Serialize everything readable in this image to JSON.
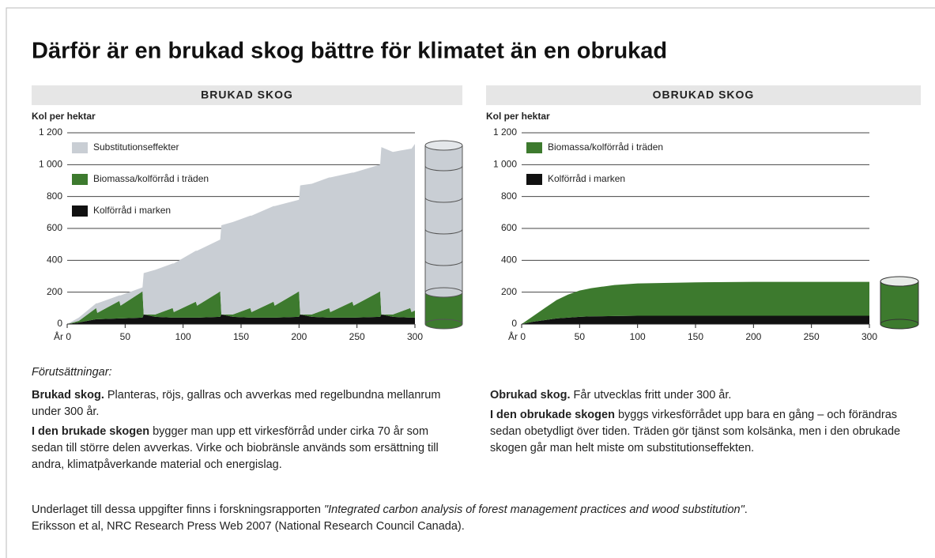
{
  "title": "Därför är en brukad skog bättre för klimatet än en obrukad",
  "chart_data": [
    {
      "type": "area",
      "title": "BRUKAD SKOG",
      "y_label": "Kol per hektar",
      "x": [
        0,
        10,
        25,
        26,
        45,
        46,
        65,
        66,
        76,
        91,
        92,
        111,
        112,
        132,
        133,
        143,
        158,
        159,
        178,
        179,
        200,
        201,
        211,
        226,
        227,
        246,
        247,
        270,
        271,
        281,
        296,
        297,
        300
      ],
      "series": [
        {
          "name": "Kolförråd i marken",
          "color": "#111111",
          "values": [
            0,
            10,
            30,
            30,
            35,
            35,
            40,
            60,
            45,
            40,
            40,
            40,
            40,
            45,
            60,
            45,
            40,
            40,
            40,
            40,
            45,
            60,
            45,
            40,
            40,
            40,
            40,
            45,
            60,
            45,
            40,
            40,
            40
          ]
        },
        {
          "name": "Biomassa/kolförråd i träden",
          "color": "#3d7a2e",
          "values": [
            0,
            10,
            70,
            40,
            110,
            80,
            165,
            0,
            15,
            60,
            35,
            100,
            75,
            160,
            0,
            15,
            60,
            35,
            100,
            75,
            160,
            0,
            15,
            60,
            35,
            100,
            75,
            160,
            0,
            15,
            60,
            35,
            45
          ]
        },
        {
          "name": "Substitutionseffekter",
          "color": "#c9ced4",
          "values": [
            0,
            20,
            30,
            60,
            35,
            65,
            25,
            260,
            280,
            280,
            305,
            320,
            345,
            325,
            560,
            580,
            580,
            605,
            600,
            625,
            575,
            810,
            820,
            820,
            845,
            810,
            835,
            795,
            1050,
            1020,
            1000,
            1025,
            1045
          ]
        }
      ],
      "xlim": [
        0,
        300
      ],
      "xticks": [
        {
          "value": 0,
          "label": "År 0"
        },
        50,
        100,
        150,
        200,
        250,
        300
      ],
      "ylim": [
        0,
        1200
      ],
      "yticks": [
        0,
        200,
        400,
        600,
        800,
        {
          "value": 1000,
          "label": "1 000"
        },
        {
          "value": 1200,
          "label": "1 200"
        }
      ]
    },
    {
      "type": "area",
      "title": "OBRUKAD SKOG",
      "y_label": "Kol per hektar",
      "x": [
        0,
        10,
        20,
        30,
        40,
        50,
        60,
        80,
        100,
        150,
        200,
        250,
        300
      ],
      "series": [
        {
          "name": "Kolförråd i marken",
          "color": "#111111",
          "values": [
            0,
            15,
            25,
            35,
            40,
            45,
            48,
            50,
            52,
            52,
            52,
            52,
            52
          ]
        },
        {
          "name": "Biomassa/kolförråd i träden",
          "color": "#3d7a2e",
          "values": [
            0,
            35,
            75,
            115,
            145,
            165,
            177,
            195,
            203,
            210,
            213,
            213,
            213
          ]
        }
      ],
      "xlim": [
        0,
        300
      ],
      "xticks": [
        {
          "value": 0,
          "label": "År 0"
        },
        50,
        100,
        150,
        200,
        250,
        300
      ],
      "ylim": [
        0,
        1200
      ],
      "yticks": [
        0,
        200,
        400,
        600,
        800,
        {
          "value": 1000,
          "label": "1 000"
        },
        {
          "value": 1200,
          "label": "1 200"
        }
      ]
    }
  ],
  "conditions_label": "Förutsättningar:",
  "left_text": [
    {
      "lead": "Brukad skog.",
      "body": " Planteras, röjs, gallras och avverkas med regelbundna mellanrum under 300 år."
    },
    {
      "lead": "I den brukade skogen",
      "body": " bygger man upp ett virkesförråd under cirka 70 år som sedan till större delen avverkas. Virke och biobränsle används som ersättning till andra, klimatpåverkande material och energislag."
    }
  ],
  "right_text": [
    {
      "lead": "Obrukad skog.",
      "body": " Får utvecklas fritt under 300 år."
    },
    {
      "lead": "I den obrukade skogen",
      "body": " byggs virkesförrådet upp bara en gång – och förändras sedan obetydligt över tiden. Träden gör tjänst som kolsänka, men i den obrukade skogen går man helt miste om substitutionseffekten."
    }
  ],
  "source": {
    "text": "Underlaget till dessa uppgifter finns i forskningsrapporten ",
    "title": "\"Integrated carbon analysis of forest management practices and wood substitution\"",
    "end": ".",
    "line2": "Eriksson et al, NRC Research Press Web 2007 (National Research Council Canada)."
  }
}
